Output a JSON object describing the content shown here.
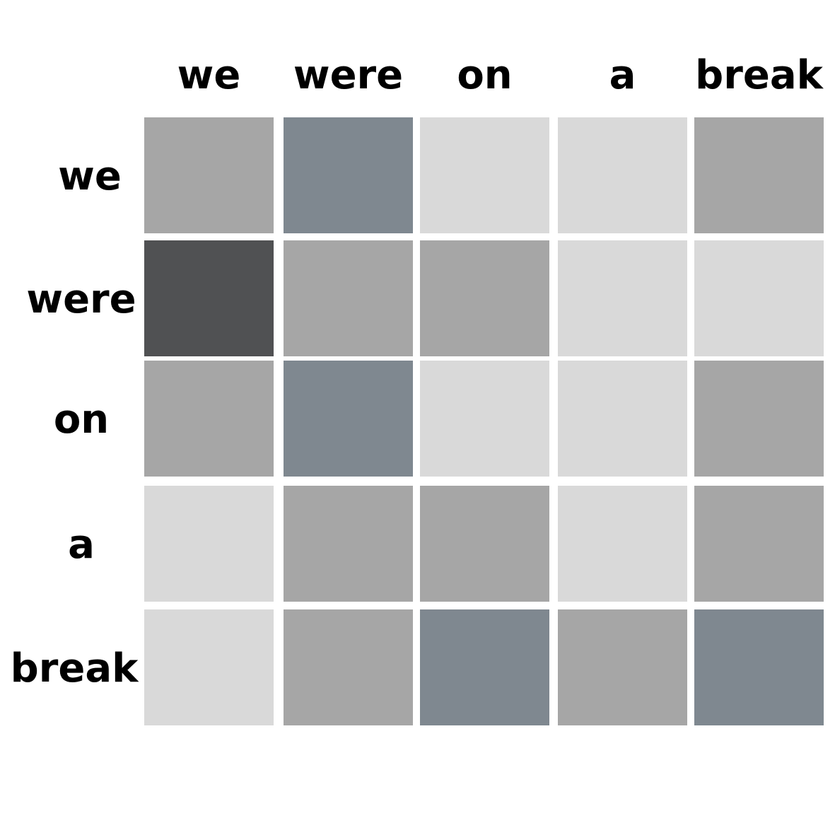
{
  "chart_data": {
    "type": "heatmap",
    "x_labels": [
      "we",
      "were",
      "on",
      "a",
      "break"
    ],
    "y_labels": [
      "we",
      "were",
      "on",
      "a",
      "break"
    ],
    "values": [
      [
        2,
        3,
        1,
        1,
        2
      ],
      [
        4,
        2,
        2,
        1,
        1
      ],
      [
        2,
        3,
        1,
        1,
        2
      ],
      [
        1,
        2,
        2,
        1,
        2
      ],
      [
        1,
        2,
        3,
        2,
        3
      ]
    ],
    "level_colors": {
      "1": "#d9d9d9",
      "2": "#a6a6a6",
      "3": "#7f8890",
      "4": "#505153"
    }
  }
}
